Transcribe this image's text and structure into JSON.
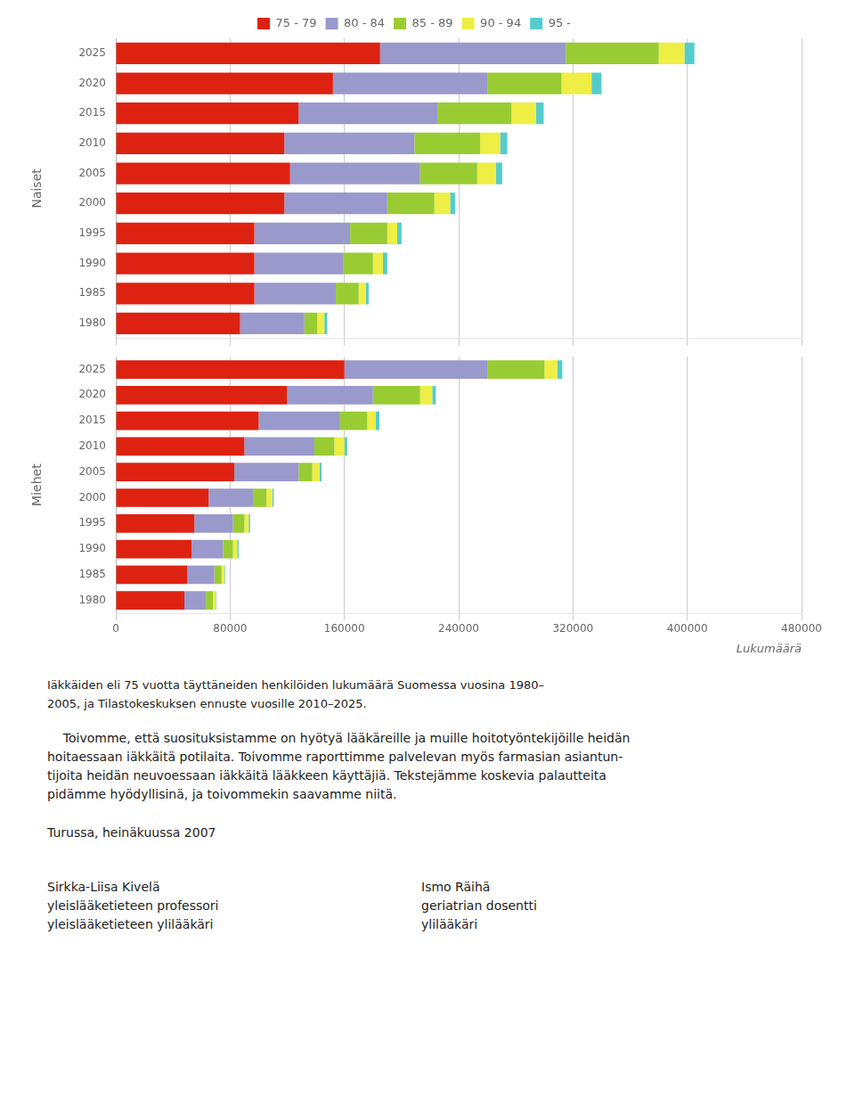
{
  "chart_data": [
    {
      "type": "bar",
      "orientation": "horizontal",
      "stacked": true,
      "ylabel": "Naiset",
      "categories": [
        "2025",
        "2020",
        "2015",
        "2010",
        "2005",
        "2000",
        "1995",
        "1990",
        "1985",
        "1980"
      ],
      "series": [
        {
          "name": "75 - 79",
          "color": "#dd2211",
          "values": [
            185000,
            152000,
            128000,
            118000,
            122000,
            118000,
            97000,
            97000,
            97000,
            87000
          ]
        },
        {
          "name": "80 - 84",
          "color": "#9999cc",
          "values": [
            130000,
            108000,
            97000,
            91000,
            91000,
            72000,
            67000,
            62000,
            57000,
            45000
          ]
        },
        {
          "name": "85 - 89",
          "color": "#99cc33",
          "values": [
            65000,
            52000,
            52000,
            46000,
            40000,
            33000,
            26000,
            21000,
            16000,
            9000
          ]
        },
        {
          "name": "90 - 94",
          "color": "#eeee44",
          "values": [
            18000,
            21000,
            17000,
            14000,
            13000,
            11000,
            7000,
            7000,
            5000,
            5000
          ]
        },
        {
          "name": "95 -",
          "color": "#55cccc",
          "values": [
            7000,
            7000,
            5500,
            5000,
            4500,
            3500,
            3000,
            3000,
            2000,
            2000
          ]
        }
      ],
      "xlim": [
        0,
        480000
      ],
      "xticks": [
        0,
        80000,
        160000,
        240000,
        320000,
        400000,
        480000
      ],
      "grid": "x",
      "legend": "top",
      "tick_labels": "y"
    },
    {
      "type": "bar",
      "orientation": "horizontal",
      "stacked": true,
      "ylabel": "Miehet",
      "xlabel": "Lukumäärä",
      "categories": [
        "2025",
        "2020",
        "2015",
        "2010",
        "2005",
        "2000",
        "1995",
        "1990",
        "1985",
        "1980"
      ],
      "series": [
        {
          "name": "75 - 79",
          "color": "#dd2211",
          "values": [
            160000,
            120000,
            100000,
            90000,
            83000,
            65000,
            55000,
            53000,
            50000,
            48000
          ]
        },
        {
          "name": "80 - 84",
          "color": "#9999cc",
          "values": [
            100000,
            60000,
            57000,
            49000,
            45000,
            31000,
            27000,
            22000,
            19000,
            15000
          ]
        },
        {
          "name": "85 - 89",
          "color": "#99cc33",
          "values": [
            40000,
            33000,
            19000,
            14000,
            9500,
            9500,
            8000,
            7000,
            5000,
            5000
          ]
        },
        {
          "name": "90 - 94",
          "color": "#eeee44",
          "values": [
            9000,
            8500,
            6000,
            7000,
            5000,
            4000,
            3000,
            3000,
            2000,
            2000
          ]
        },
        {
          "name": "95 -",
          "color": "#55cccc",
          "values": [
            3500,
            2500,
            2500,
            2000,
            1500,
            1000,
            1000,
            1000,
            500,
            500
          ]
        }
      ],
      "xlim": [
        0,
        480000
      ],
      "xticks": [
        0,
        80000,
        160000,
        240000,
        320000,
        400000,
        480000
      ],
      "grid": "x"
    }
  ],
  "caption_lines": [
    "Iäkkäiden eli 75 vuotta täyttäneiden henkilöiden lukumäärä Suomessa vuosina 1980–",
    "2005, ja Tilastokeskuksen ennuste vuosille 2010–2025."
  ],
  "body_text_lines": [
    "    Toivomme, että suosituksistamme on hyötyä lääkäreille ja muille hoitotyöntekijöille heidän",
    "hoitaessaan iäkkäitä potilaita. Toivomme raporttimme palvelevan myös farmasian asiantun-",
    "tijoita heidän neuvoessaan iäkkäitä lääkkeen käyttäjiä. Tekstejämme koskevia palautteita",
    "pidämme hyödyllisinä, ja toivommekin saavamme niitä."
  ],
  "location_text": "Turussa, heinäkuussa 2007",
  "authors": [
    [
      "Sirkka-Liisa Kivelä",
      "yleislääketieteen professori",
      "yleislääketieteen ylilääkäri"
    ],
    [
      "Ismo Räihä",
      "geriatrian dosentti",
      "ylilääkäri"
    ]
  ]
}
